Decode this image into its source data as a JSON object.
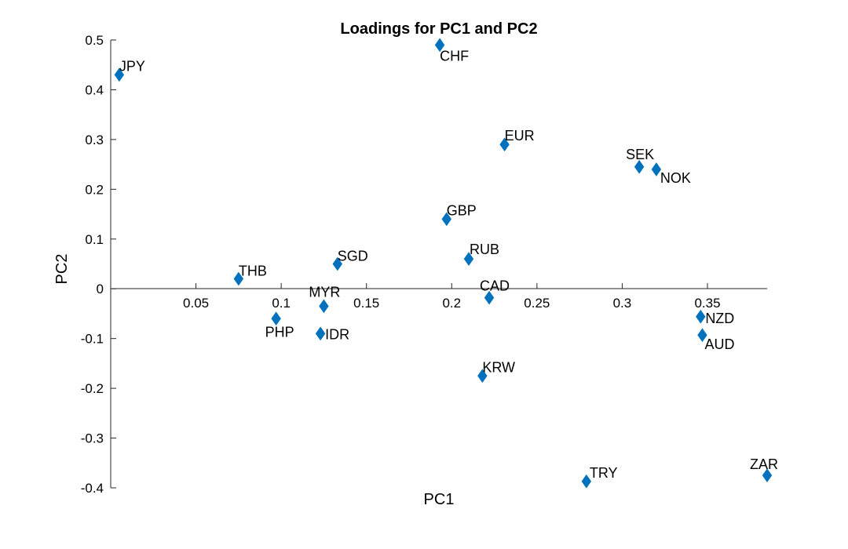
{
  "chart_data": {
    "type": "scatter",
    "title": "Loadings for PC1 and PC2",
    "xlabel": "PC1",
    "ylabel": "PC2",
    "xlim": [
      0.0,
      0.385
    ],
    "ylim": [
      -0.4,
      0.5
    ],
    "xticks": [
      0.05,
      0.1,
      0.15,
      0.2,
      0.25,
      0.3,
      0.35
    ],
    "xtick_labels": [
      "0.05",
      "0.1",
      "0.15",
      "0.2",
      "0.25",
      "0.3",
      "0.35"
    ],
    "yticks": [
      0.5,
      0.4,
      0.3,
      0.2,
      0.1,
      0,
      -0.1,
      -0.2,
      -0.3,
      -0.4
    ],
    "ytick_labels": [
      "0.5",
      "0.4",
      "0.3",
      "0.2",
      "0.1",
      "0",
      "-0.1",
      "-0.2",
      "-0.3",
      "-0.4"
    ],
    "marker": "diamond",
    "marker_color": "#0072bd",
    "grid": false,
    "points": [
      {
        "label": "JPY",
        "x": 0.005,
        "y": 0.43
      },
      {
        "label": "CHF",
        "x": 0.193,
        "y": 0.49
      },
      {
        "label": "EUR",
        "x": 0.231,
        "y": 0.29
      },
      {
        "label": "SEK",
        "x": 0.31,
        "y": 0.245
      },
      {
        "label": "NOK",
        "x": 0.32,
        "y": 0.24
      },
      {
        "label": "GBP",
        "x": 0.197,
        "y": 0.14
      },
      {
        "label": "RUB",
        "x": 0.21,
        "y": 0.06
      },
      {
        "label": "SGD",
        "x": 0.133,
        "y": 0.05
      },
      {
        "label": "THB",
        "x": 0.075,
        "y": 0.02
      },
      {
        "label": "CAD",
        "x": 0.222,
        "y": -0.018
      },
      {
        "label": "MYR",
        "x": 0.125,
        "y": -0.035
      },
      {
        "label": "PHP",
        "x": 0.097,
        "y": -0.06
      },
      {
        "label": "IDR",
        "x": 0.123,
        "y": -0.09
      },
      {
        "label": "NZD",
        "x": 0.346,
        "y": -0.056
      },
      {
        "label": "AUD",
        "x": 0.347,
        "y": -0.093
      },
      {
        "label": "KRW",
        "x": 0.218,
        "y": -0.175
      },
      {
        "label": "TRY",
        "x": 0.279,
        "y": -0.387
      },
      {
        "label": "ZAR",
        "x": 0.385,
        "y": -0.375
      }
    ]
  }
}
